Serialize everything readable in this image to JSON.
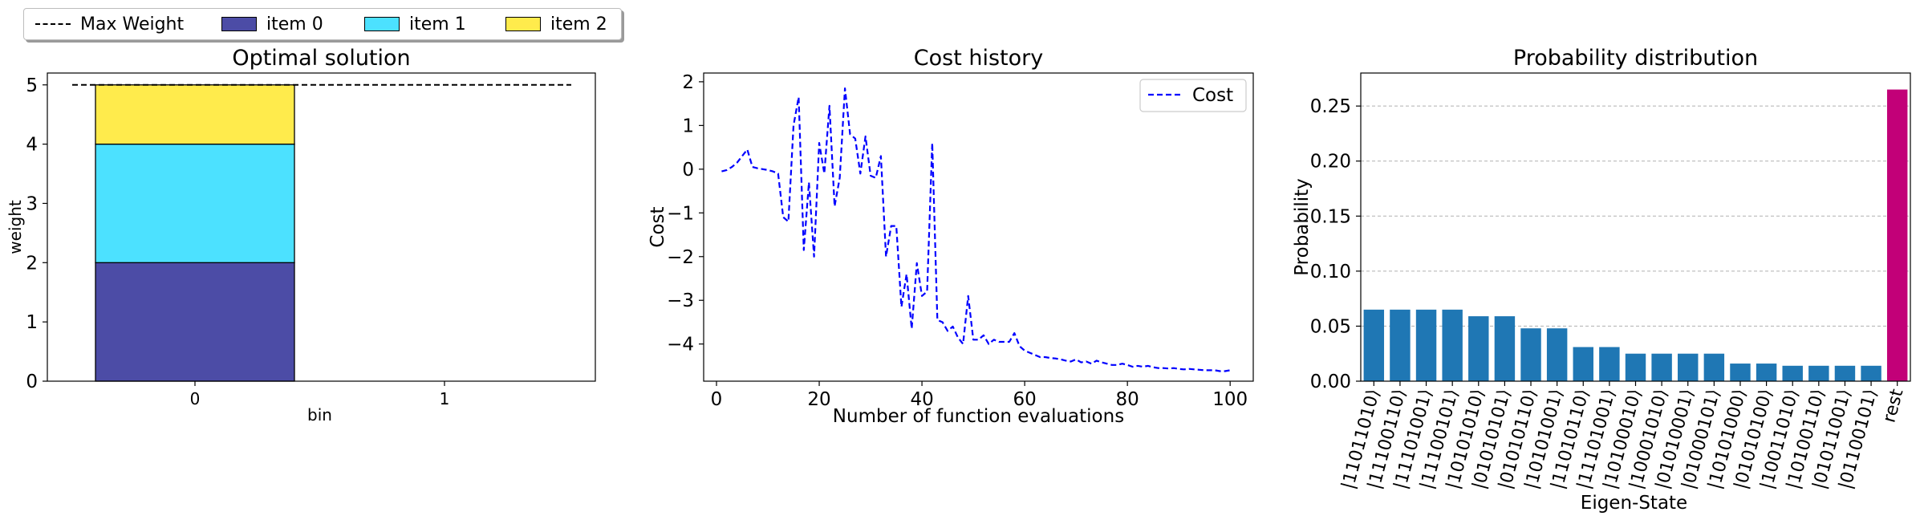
{
  "chart_data": [
    {
      "type": "bar",
      "title": "Optimal solution",
      "xlabel": "bin",
      "ylabel": "weight",
      "categories": [
        "0",
        "1"
      ],
      "stacked": true,
      "ylim": [
        0,
        5.2
      ],
      "yticks": [
        "0",
        "1",
        "2",
        "3",
        "4",
        "5"
      ],
      "series": [
        {
          "name": "item 0",
          "color": "#4c4ca6",
          "values": [
            2,
            0
          ]
        },
        {
          "name": "item 1",
          "color": "#4ce1ff",
          "values": [
            2,
            0
          ]
        },
        {
          "name": "item 2",
          "color": "#ffeb4c",
          "values": [
            1,
            0
          ]
        }
      ],
      "reference_line": {
        "name": "Max Weight",
        "value": 5,
        "style": "dashed",
        "color": "#000000"
      },
      "legend": {
        "placement": "top-left (outside)"
      }
    },
    {
      "type": "line",
      "title": "Cost history",
      "xlabel": "Number of function evaluations",
      "ylabel": "Cost",
      "xlim": [
        -2.5,
        104.5
      ],
      "ylim": [
        -4.85,
        2.2
      ],
      "xticks": [
        "0",
        "20",
        "40",
        "60",
        "80",
        "100"
      ],
      "yticks": [
        "2",
        "1",
        "0",
        "−1",
        "−2",
        "−3",
        "−4"
      ],
      "legend": {
        "placement": "top-right"
      },
      "series": [
        {
          "name": "Cost",
          "color": "#0000ff",
          "style": "dashed",
          "x": [
            1,
            2,
            3,
            4,
            5,
            6,
            7,
            8,
            9,
            10,
            11,
            12,
            13,
            14,
            15,
            16,
            17,
            18,
            19,
            20,
            21,
            22,
            23,
            24,
            25,
            26,
            27,
            28,
            29,
            30,
            31,
            32,
            33,
            34,
            35,
            36,
            37,
            38,
            39,
            40,
            41,
            42,
            43,
            44,
            45,
            46,
            47,
            48,
            49,
            50,
            51,
            52,
            53,
            54,
            55,
            56,
            57,
            58,
            59,
            60,
            61,
            62,
            63,
            64,
            65,
            66,
            67,
            68,
            69,
            70,
            71,
            72,
            73,
            74,
            75,
            76,
            77,
            78,
            79,
            80,
            81,
            82,
            83,
            84,
            85,
            86,
            87,
            88,
            89,
            90,
            91,
            92,
            93,
            94,
            95,
            96,
            97,
            98,
            99,
            100
          ],
          "y": [
            -0.05,
            -0.02,
            0.05,
            0.15,
            0.3,
            0.45,
            0.05,
            0.02,
            0.0,
            -0.02,
            -0.05,
            -0.1,
            -1.1,
            -1.2,
            1.0,
            1.65,
            -1.85,
            -0.3,
            -2.0,
            0.6,
            -0.1,
            1.45,
            -0.85,
            -0.2,
            1.85,
            0.8,
            0.7,
            -0.1,
            0.75,
            -0.15,
            -0.2,
            0.3,
            -2.0,
            -1.3,
            -1.3,
            -3.15,
            -2.4,
            -3.65,
            -2.15,
            -2.9,
            -2.8,
            0.6,
            -3.45,
            -3.5,
            -3.7,
            -3.6,
            -3.85,
            -4.0,
            -2.9,
            -3.9,
            -3.9,
            -3.8,
            -4.0,
            -3.9,
            -3.95,
            -3.95,
            -3.95,
            -3.75,
            -4.05,
            -4.15,
            -4.2,
            -4.25,
            -4.3,
            -4.3,
            -4.32,
            -4.33,
            -4.35,
            -4.38,
            -4.4,
            -4.35,
            -4.42,
            -4.4,
            -4.45,
            -4.38,
            -4.42,
            -4.45,
            -4.48,
            -4.48,
            -4.45,
            -4.48,
            -4.52,
            -4.5,
            -4.52,
            -4.5,
            -4.53,
            -4.55,
            -4.55,
            -4.56,
            -4.55,
            -4.57,
            -4.58,
            -4.57,
            -4.58,
            -4.59,
            -4.6,
            -4.6,
            -4.6,
            -4.62,
            -4.62,
            -4.6
          ]
        }
      ]
    },
    {
      "type": "bar",
      "title": "Probability distribution",
      "xlabel": "Eigen-State",
      "ylabel": "Probability",
      "ylim": [
        0,
        0.28
      ],
      "yticks": [
        "0.00",
        "0.05",
        "0.10",
        "0.15",
        "0.20",
        "0.25"
      ],
      "grid": "horizontal dashed",
      "categories": [
        "|11011010⟩",
        "|11100110⟩",
        "|11101001⟩",
        "|11100101⟩",
        "|10101010⟩",
        "|01010101⟩",
        "|01010110⟩",
        "|10101001⟩",
        "|11010110⟩",
        "|11101001⟩",
        "|10100010⟩",
        "|10001010⟩",
        "|01010001⟩",
        "|01000101⟩",
        "|10101000⟩",
        "|01010100⟩",
        "|10011010⟩",
        "|10100110⟩",
        "|01011001⟩",
        "|01100101⟩",
        "rest"
      ],
      "values": [
        0.065,
        0.065,
        0.065,
        0.065,
        0.059,
        0.059,
        0.048,
        0.048,
        0.031,
        0.031,
        0.025,
        0.025,
        0.025,
        0.025,
        0.016,
        0.016,
        0.014,
        0.014,
        0.014,
        0.014,
        0.265
      ],
      "colors": {
        "default": "#1f77b4",
        "rest": "#c20078"
      }
    }
  ]
}
